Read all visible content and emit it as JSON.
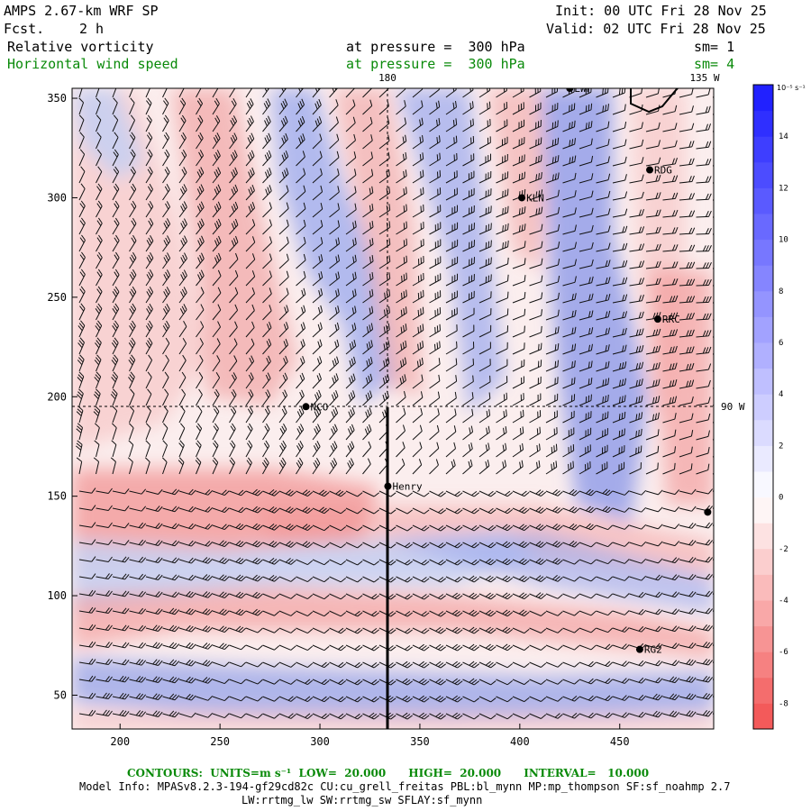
{
  "header": {
    "model": "AMPS 2.67-km WRF SP",
    "forecast_label": "Fcst.",
    "forecast_value": "2 h",
    "init": "Init: 00 UTC Fri 28 Nov 25",
    "valid": "Valid: 02 UTC Fri 28 Nov 25",
    "field1_name": "Relative vorticity",
    "field1_level": "at pressure =  300 hPa",
    "field1_sm": "sm= 1",
    "field2_name": "Horizontal wind speed",
    "field2_level": "at pressure =  300 hPa",
    "field2_sm": "sm= 4"
  },
  "axes": {
    "x_ticks": [
      "200",
      "250",
      "300",
      "350",
      "400",
      "450"
    ],
    "y_ticks": [
      "350",
      "300",
      "250",
      "200",
      "150",
      "100",
      "50"
    ],
    "x_range": [
      176,
      497
    ],
    "y_range": [
      33,
      355
    ],
    "lon_label_top": "180",
    "lon_label_right_top": "135 W",
    "lat_label_right": "90 W"
  },
  "stations": [
    {
      "name": "LWF",
      "x": 425,
      "y": 355
    },
    {
      "name": "RDG",
      "x": 465,
      "y": 314
    },
    {
      "name": "KLN",
      "x": 401,
      "y": 300
    },
    {
      "name": "RRC",
      "x": 469,
      "y": 239
    },
    {
      "name": "NCO",
      "x": 293,
      "y": 195
    },
    {
      "name": "Henry",
      "x": 334,
      "y": 155
    },
    {
      "name": "RG2",
      "x": 460,
      "y": 73
    },
    {
      "name": "",
      "x": 494,
      "y": 142
    }
  ],
  "colorbar": {
    "unit_label": "10⁻⁵ s⁻¹",
    "labels": [
      "14",
      "12",
      "10",
      "8",
      "6",
      "4",
      "2",
      "0",
      "-2",
      "-4",
      "-6",
      "-8"
    ],
    "min": -9,
    "max": 16,
    "positive_color": "#1a1aff",
    "negative_color": "#f25050"
  },
  "footer": {
    "contours": "CONTOURS:  UNITS=m s⁻¹  LOW=  20.000      HIGH=  20.000      INTERVAL=   10.000",
    "model_info": "Model Info: MPASv8.2.3-194-gf29cd82c CU:cu_grell_freitas PBL:bl_mynn MP:mp_thompson SF:sf_noahmp 2.7",
    "model_info2": "LW:rrtmg_lw SW:rrtmg_sw SFLAY:sf_mynn"
  }
}
